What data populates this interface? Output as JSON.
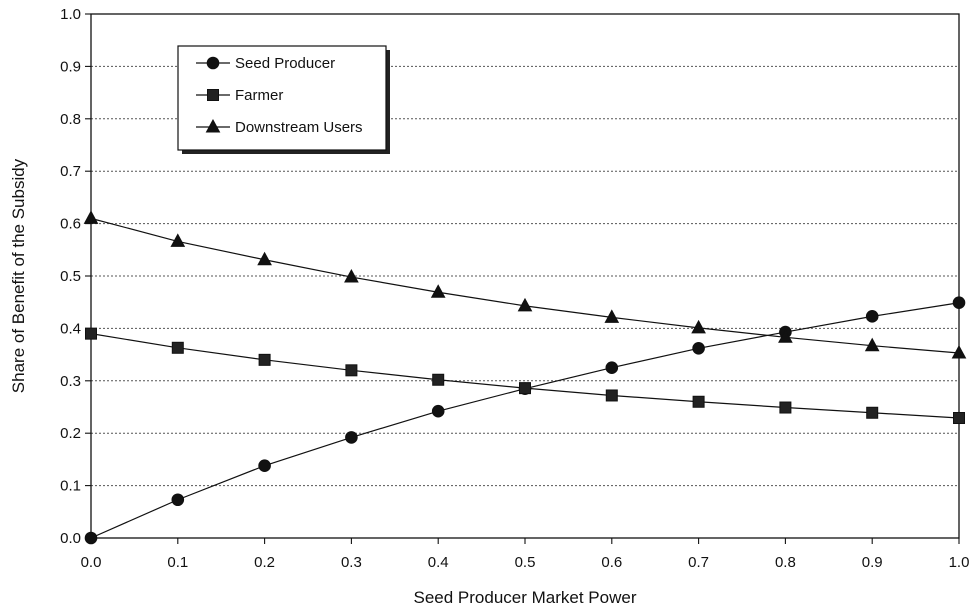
{
  "chart_data": {
    "type": "line",
    "title": "",
    "xlabel": "Seed Producer Market Power",
    "ylabel": "Share of Benefit of the Subsidy",
    "x": [
      0.0,
      0.1,
      0.2,
      0.3,
      0.4,
      0.5,
      0.6,
      0.7,
      0.8,
      0.9,
      1.0
    ],
    "xlim": [
      0.0,
      1.0
    ],
    "ylim": [
      0.0,
      1.0
    ],
    "xticks": [
      "0.0",
      "0.1",
      "0.2",
      "0.3",
      "0.4",
      "0.5",
      "0.6",
      "0.7",
      "0.8",
      "0.9",
      "1.0"
    ],
    "yticks": [
      "0.0",
      "0.1",
      "0.2",
      "0.3",
      "0.4",
      "0.5",
      "0.6",
      "0.7",
      "0.8",
      "0.9",
      "1.0"
    ],
    "grid": "horizontal dotted",
    "legend_position": "top-left",
    "series": [
      {
        "name": "Seed Producer",
        "marker": "circle",
        "values": [
          0.0,
          0.073,
          0.138,
          0.192,
          0.242,
          0.285,
          0.325,
          0.362,
          0.393,
          0.423,
          0.449
        ]
      },
      {
        "name": "Farmer",
        "marker": "square",
        "values": [
          0.39,
          0.363,
          0.34,
          0.32,
          0.302,
          0.286,
          0.272,
          0.26,
          0.249,
          0.239,
          0.229
        ]
      },
      {
        "name": "Downstream Users",
        "marker": "triangle",
        "values": [
          0.61,
          0.566,
          0.531,
          0.498,
          0.469,
          0.443,
          0.421,
          0.401,
          0.383,
          0.367,
          0.353
        ]
      }
    ]
  }
}
